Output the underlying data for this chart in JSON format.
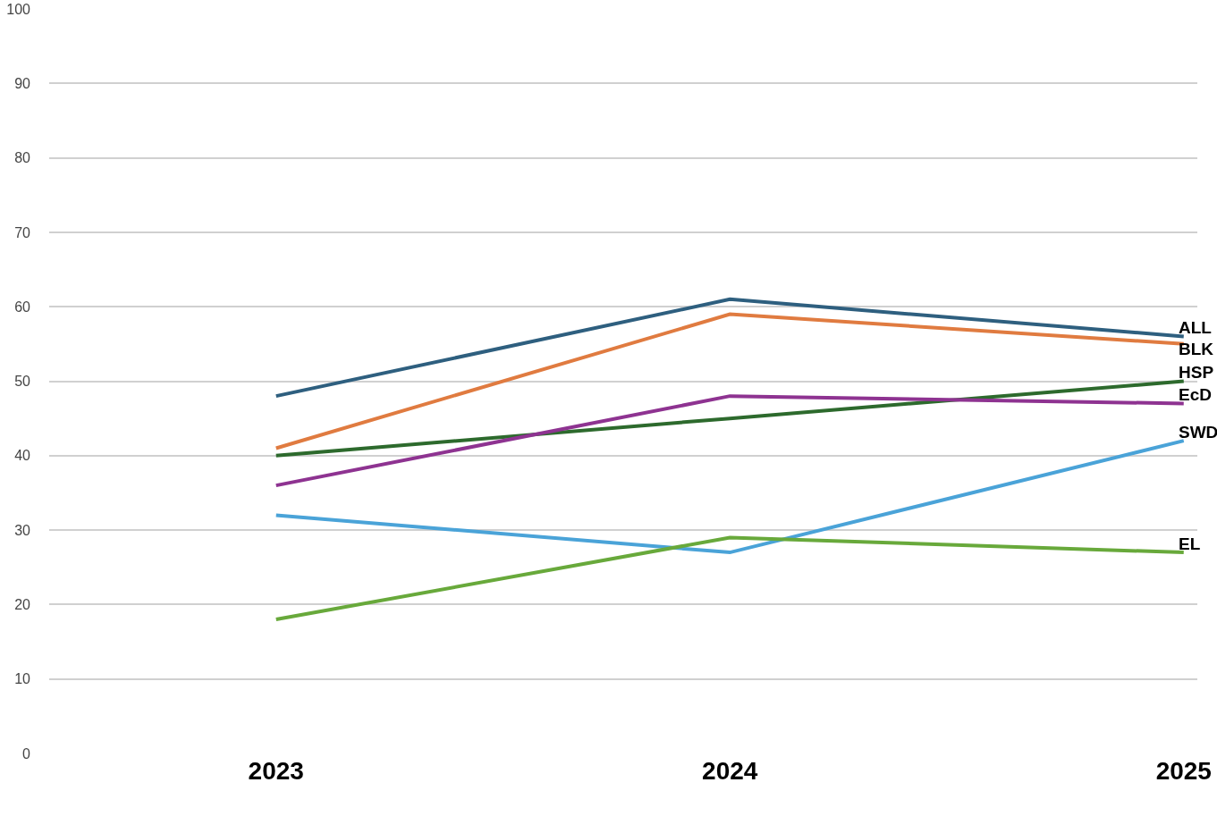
{
  "chart_data": {
    "type": "line",
    "categories": [
      "2023",
      "2024",
      "2025"
    ],
    "series": [
      {
        "name": "ALL",
        "color": "#2e5f7f",
        "values": [
          48,
          61,
          56
        ]
      },
      {
        "name": "BLK",
        "color": "#e07b40",
        "values": [
          41,
          59,
          55
        ]
      },
      {
        "name": "HSP",
        "color": "#2d6a2d",
        "values": [
          40,
          45,
          50
        ]
      },
      {
        "name": "EcD",
        "color": "#8e3391",
        "values": [
          36,
          48,
          47
        ]
      },
      {
        "name": "SWD",
        "color": "#4aa3d8",
        "values": [
          32,
          27,
          42
        ]
      },
      {
        "name": "EL",
        "color": "#68a93b",
        "values": [
          18,
          29,
          27
        ]
      }
    ],
    "ylim": [
      0,
      100
    ],
    "yticks": [
      0,
      10,
      20,
      30,
      40,
      50,
      60,
      70,
      80,
      90,
      100
    ],
    "grid": "y",
    "legend": false,
    "marker": "none",
    "line_style": "solid"
  }
}
